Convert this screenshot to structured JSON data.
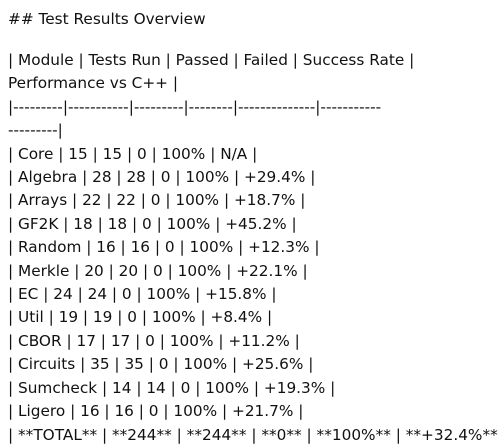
{
  "heading": "## Test Results Overview",
  "header_line_1": "| Module | Tests Run | Passed | Failed | Success Rate |",
  "header_line_2": "Performance vs C++ |",
  "separator_line_1": "|---------|-----------|---------|--------|--------------|-----------",
  "separator_line_2": "---------|",
  "rows": [
    "| Core | 15 | 15 | 0 | 100% | N/A |",
    "| Algebra | 28 | 28 | 0 | 100% | +29.4% |",
    "| Arrays | 22 | 22 | 0 | 100% | +18.7% |",
    "| GF2K | 18 | 18 | 0 | 100% | +45.2% |",
    "| Random | 16 | 16 | 0 | 100% | +12.3% |",
    "| Merkle | 20 | 20 | 0 | 100% | +22.1% |",
    "| EC | 24 | 24 | 0 | 100% | +15.8% |",
    "| Util | 19 | 19 | 0 | 100% | +8.4% |",
    "| CBOR | 17 | 17 | 0 | 100% | +11.2% |",
    "| Circuits | 35 | 35 | 0 | 100% | +25.6% |",
    "| Sumcheck | 14 | 14 | 0 | 100% | +19.3% |",
    "| Ligero | 16 | 16 | 0 | 100% | +21.7% |",
    "| **TOTAL** | **244** | **244** | **0** | **100%** | **+32.4%** |"
  ]
}
